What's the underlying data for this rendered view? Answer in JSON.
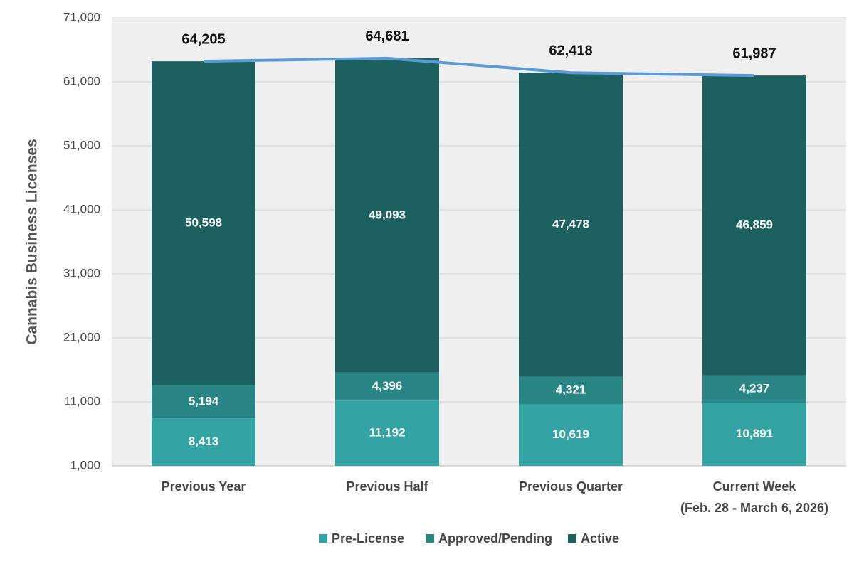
{
  "chart_data": {
    "type": "stacked_bar_line",
    "y_label": "Cannabis  Business Licenses",
    "categories": [
      [
        "Previous Year"
      ],
      [
        "Previous Half"
      ],
      [
        "Previous Quarter"
      ],
      [
        "Current Week",
        "(Feb. 28 - March 6, 2026)"
      ]
    ],
    "series": [
      {
        "name": "Pre-License",
        "color": "#33a3a3",
        "values": [
          8413,
          11192,
          10619,
          10891
        ],
        "value_labels": [
          "8,413",
          "11,192",
          "10,619",
          "10,891"
        ]
      },
      {
        "name": "Approved/Pending",
        "color": "#2a8585",
        "values": [
          5194,
          4396,
          4321,
          4237
        ],
        "value_labels": [
          "5,194",
          "4,396",
          "4,321",
          "4,237"
        ]
      },
      {
        "name": "Active",
        "color": "#1d6060",
        "values": [
          50598,
          49093,
          47478,
          46859
        ],
        "value_labels": [
          "50,598",
          "49,093",
          "47,478",
          "46,859"
        ]
      }
    ],
    "totals": {
      "color": "#5b9bd5",
      "values": [
        64205,
        64681,
        62418,
        61987
      ],
      "value_labels": [
        "64,205",
        "64,681",
        "62,418",
        "61,987"
      ]
    },
    "ylim": [
      1000,
      71000
    ],
    "yticks": [
      {
        "value": 1000,
        "label": "1,000"
      },
      {
        "value": 11000,
        "label": "11,000"
      },
      {
        "value": 21000,
        "label": "21,000"
      },
      {
        "value": 31000,
        "label": "31,000"
      },
      {
        "value": 41000,
        "label": "41,000"
      },
      {
        "value": 51000,
        "label": "51,000"
      },
      {
        "value": 61000,
        "label": "61,000"
      },
      {
        "value": 71000,
        "label": "71,000"
      }
    ],
    "grid": true,
    "legend": "bottom"
  }
}
